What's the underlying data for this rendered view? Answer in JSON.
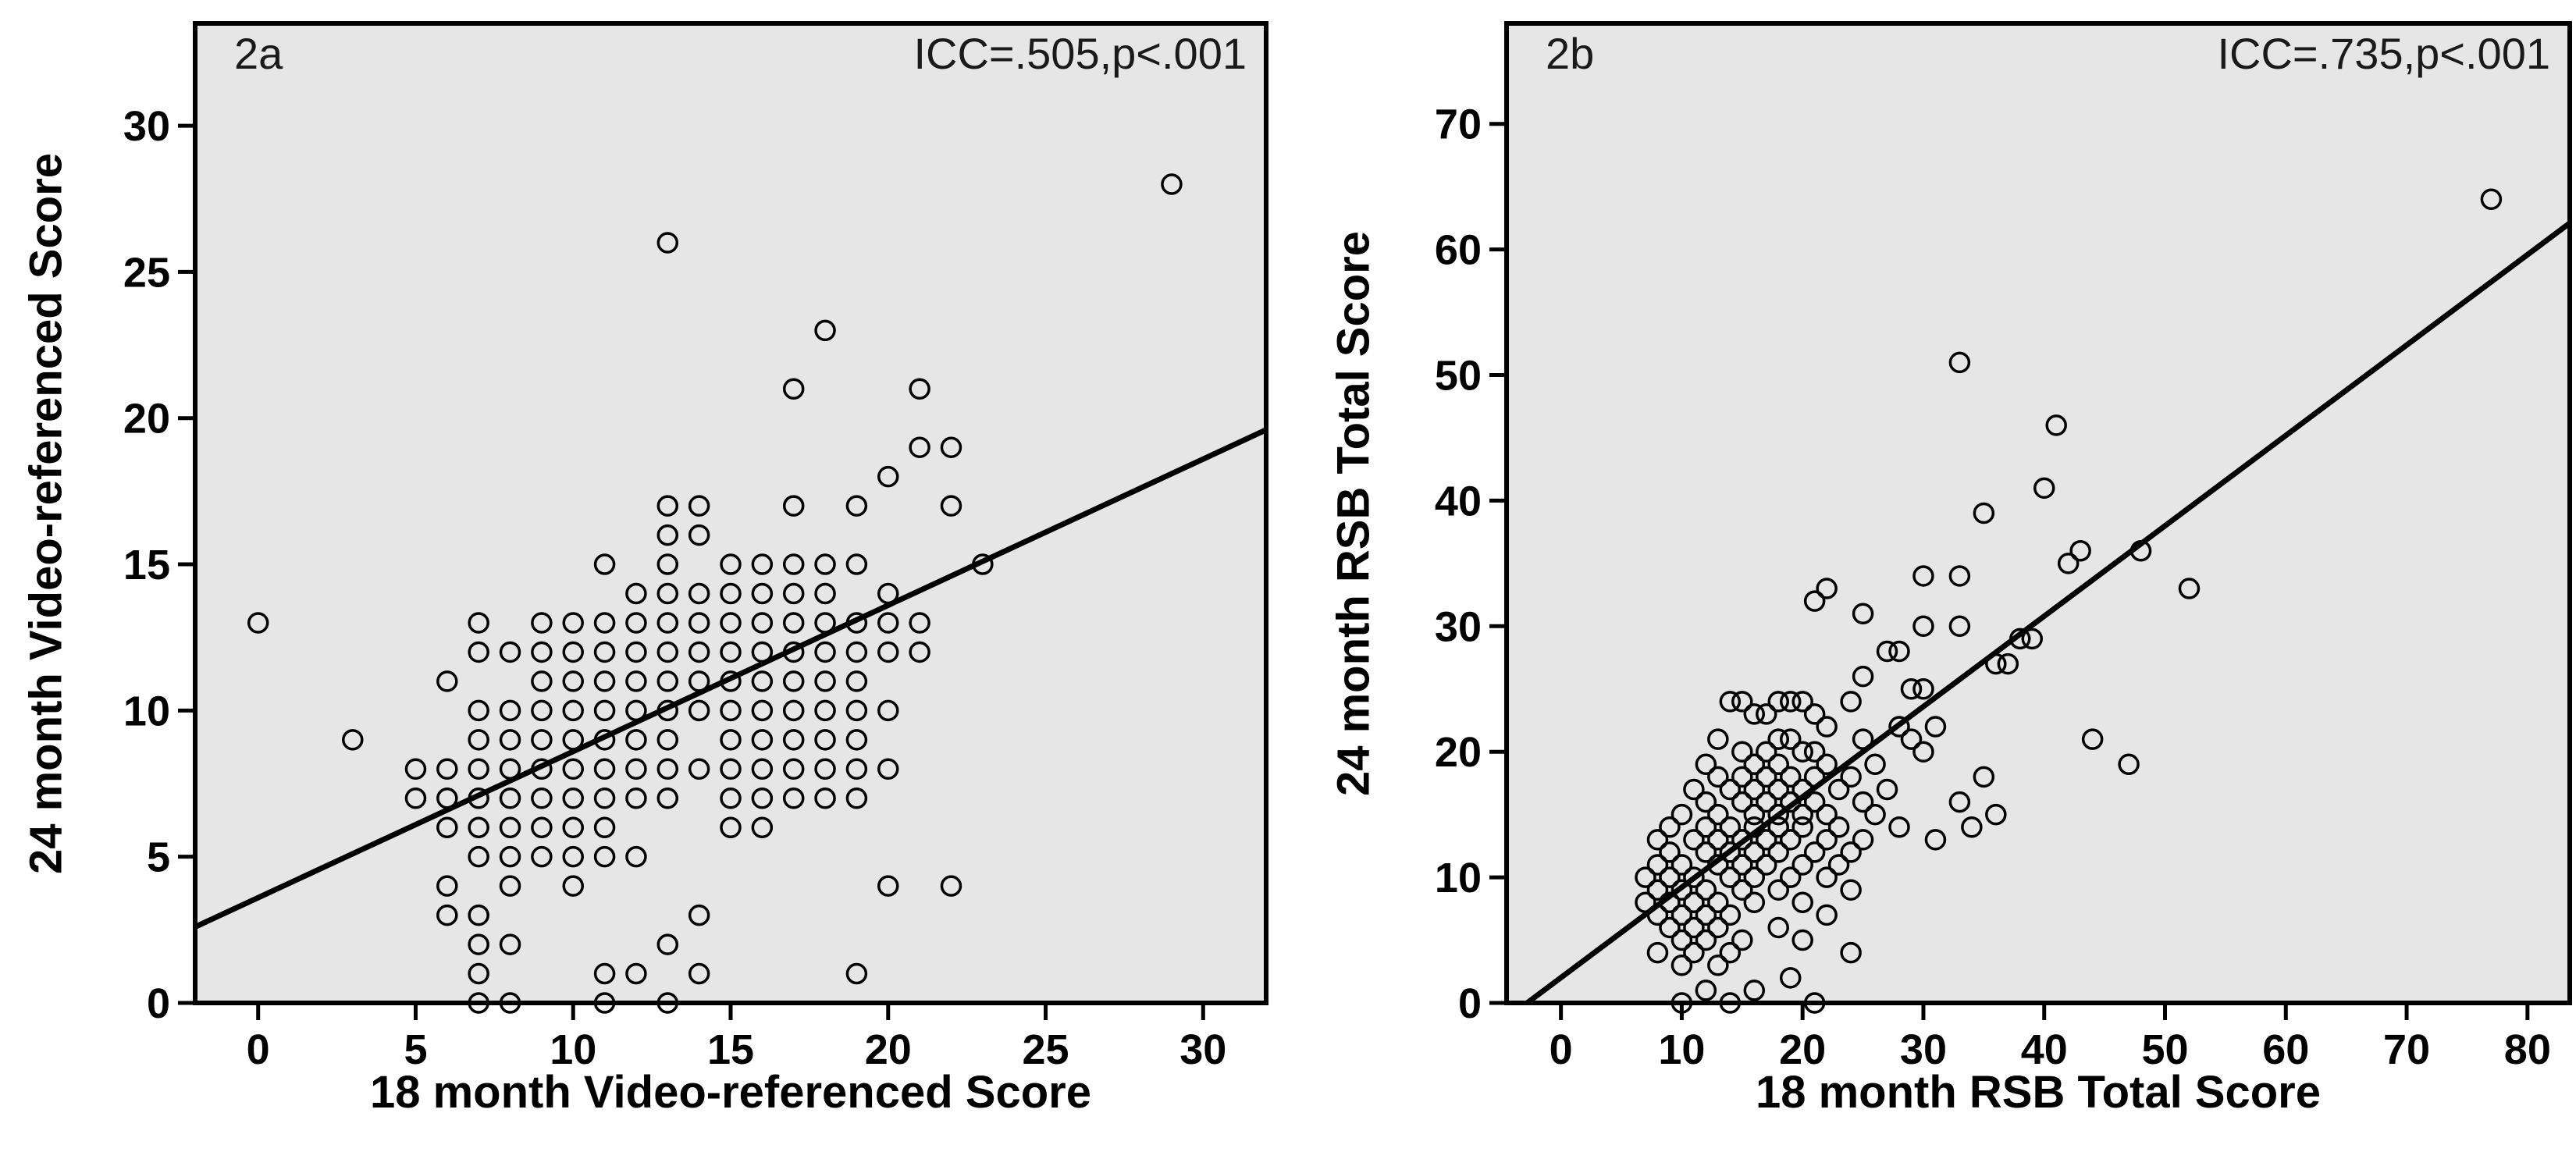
{
  "figure": {
    "background": "#ffffff",
    "plot_background": "#e6e6e6",
    "point_color": "#000000",
    "line_color": "#000000",
    "axis_color": "#000000"
  },
  "chart_data": [
    {
      "id": "2a",
      "type": "scatter",
      "panel_label": "2a",
      "annotation": "ICC=.505,p<.001",
      "xlabel": "18 month Video-referenced Score",
      "ylabel": "24 month Video-referenced Score",
      "xlim": [
        -2,
        32
      ],
      "ylim": [
        0,
        33.5
      ],
      "xticks": [
        0,
        5,
        10,
        15,
        20,
        25,
        30
      ],
      "yticks": [
        0,
        5,
        10,
        15,
        20,
        25,
        30
      ],
      "grid": false,
      "legend": "none",
      "regression_line": {
        "x1": -2,
        "y1": 2.6,
        "x2": 32,
        "y2": 19.6
      },
      "points": [
        [
          0,
          13
        ],
        [
          3,
          9
        ],
        [
          5,
          8
        ],
        [
          5,
          7
        ],
        [
          6,
          11
        ],
        [
          6,
          8
        ],
        [
          6,
          7
        ],
        [
          6,
          6
        ],
        [
          6,
          4
        ],
        [
          6,
          3
        ],
        [
          7,
          13
        ],
        [
          7,
          12
        ],
        [
          7,
          10
        ],
        [
          7,
          9
        ],
        [
          7,
          8
        ],
        [
          7,
          7
        ],
        [
          7,
          6
        ],
        [
          7,
          5
        ],
        [
          7,
          3
        ],
        [
          7,
          2
        ],
        [
          7,
          1
        ],
        [
          7,
          0
        ],
        [
          8,
          12
        ],
        [
          8,
          10
        ],
        [
          8,
          9
        ],
        [
          8,
          8
        ],
        [
          8,
          7
        ],
        [
          8,
          6
        ],
        [
          8,
          5
        ],
        [
          8,
          4
        ],
        [
          8,
          2
        ],
        [
          8,
          0
        ],
        [
          9,
          13
        ],
        [
          9,
          12
        ],
        [
          9,
          11
        ],
        [
          9,
          10
        ],
        [
          9,
          9
        ],
        [
          9,
          8
        ],
        [
          9,
          7
        ],
        [
          9,
          6
        ],
        [
          9,
          5
        ],
        [
          10,
          13
        ],
        [
          10,
          12
        ],
        [
          10,
          11
        ],
        [
          10,
          10
        ],
        [
          10,
          9
        ],
        [
          10,
          8
        ],
        [
          10,
          7
        ],
        [
          10,
          6
        ],
        [
          10,
          5
        ],
        [
          10,
          4
        ],
        [
          11,
          15
        ],
        [
          11,
          13
        ],
        [
          11,
          12
        ],
        [
          11,
          11
        ],
        [
          11,
          10
        ],
        [
          11,
          9
        ],
        [
          11,
          8
        ],
        [
          11,
          7
        ],
        [
          11,
          6
        ],
        [
          11,
          5
        ],
        [
          11,
          1
        ],
        [
          11,
          0
        ],
        [
          12,
          14
        ],
        [
          12,
          13
        ],
        [
          12,
          12
        ],
        [
          12,
          11
        ],
        [
          12,
          10
        ],
        [
          12,
          9
        ],
        [
          12,
          8
        ],
        [
          12,
          7
        ],
        [
          12,
          5
        ],
        [
          12,
          1
        ],
        [
          13,
          26
        ],
        [
          13,
          17
        ],
        [
          13,
          16
        ],
        [
          13,
          15
        ],
        [
          13,
          14
        ],
        [
          13,
          13
        ],
        [
          13,
          12
        ],
        [
          13,
          11
        ],
        [
          13,
          10
        ],
        [
          13,
          9
        ],
        [
          13,
          8
        ],
        [
          13,
          7
        ],
        [
          13,
          2
        ],
        [
          13,
          0
        ],
        [
          14,
          17
        ],
        [
          14,
          16
        ],
        [
          14,
          14
        ],
        [
          14,
          13
        ],
        [
          14,
          12
        ],
        [
          14,
          11
        ],
        [
          14,
          10
        ],
        [
          14,
          8
        ],
        [
          14,
          3
        ],
        [
          14,
          1
        ],
        [
          15,
          15
        ],
        [
          15,
          14
        ],
        [
          15,
          13
        ],
        [
          15,
          12
        ],
        [
          15,
          11
        ],
        [
          15,
          10
        ],
        [
          15,
          9
        ],
        [
          15,
          8
        ],
        [
          15,
          7
        ],
        [
          15,
          6
        ],
        [
          16,
          15
        ],
        [
          16,
          14
        ],
        [
          16,
          13
        ],
        [
          16,
          12
        ],
        [
          16,
          11
        ],
        [
          16,
          10
        ],
        [
          16,
          9
        ],
        [
          16,
          8
        ],
        [
          16,
          7
        ],
        [
          16,
          6
        ],
        [
          17,
          21
        ],
        [
          17,
          17
        ],
        [
          17,
          15
        ],
        [
          17,
          14
        ],
        [
          17,
          13
        ],
        [
          17,
          12
        ],
        [
          17,
          11
        ],
        [
          17,
          10
        ],
        [
          17,
          9
        ],
        [
          17,
          8
        ],
        [
          17,
          7
        ],
        [
          18,
          23
        ],
        [
          18,
          15
        ],
        [
          18,
          14
        ],
        [
          18,
          13
        ],
        [
          18,
          12
        ],
        [
          18,
          11
        ],
        [
          18,
          10
        ],
        [
          18,
          9
        ],
        [
          18,
          8
        ],
        [
          18,
          7
        ],
        [
          19,
          17
        ],
        [
          19,
          15
        ],
        [
          19,
          13
        ],
        [
          19,
          12
        ],
        [
          19,
          11
        ],
        [
          19,
          10
        ],
        [
          19,
          9
        ],
        [
          19,
          8
        ],
        [
          19,
          7
        ],
        [
          19,
          1
        ],
        [
          20,
          18
        ],
        [
          20,
          14
        ],
        [
          20,
          13
        ],
        [
          20,
          12
        ],
        [
          20,
          10
        ],
        [
          20,
          8
        ],
        [
          20,
          4
        ],
        [
          21,
          21
        ],
        [
          21,
          19
        ],
        [
          21,
          13
        ],
        [
          21,
          12
        ],
        [
          22,
          19
        ],
        [
          22,
          17
        ],
        [
          22,
          4
        ],
        [
          23,
          15
        ],
        [
          29,
          28
        ]
      ]
    },
    {
      "id": "2b",
      "type": "scatter",
      "panel_label": "2b",
      "annotation": "ICC=.735,p<.001",
      "xlabel": "18 month RSB Total Score",
      "ylabel": "24 month RSB Total Score",
      "xlim": [
        -4.5,
        83.5
      ],
      "ylim": [
        0,
        78
      ],
      "xticks": [
        0,
        10,
        20,
        30,
        40,
        50,
        60,
        70,
        80
      ],
      "yticks": [
        0,
        10,
        20,
        30,
        40,
        50,
        60,
        70
      ],
      "grid": false,
      "legend": "none",
      "regression_line": {
        "x1": -2.8,
        "y1": 0,
        "x2": 83.5,
        "y2": 62.1
      },
      "points": [
        [
          77,
          64
        ],
        [
          33,
          51
        ],
        [
          41,
          46
        ],
        [
          40,
          41
        ],
        [
          35,
          39
        ],
        [
          43,
          36
        ],
        [
          48,
          36
        ],
        [
          42,
          35
        ],
        [
          30,
          34
        ],
        [
          33,
          34
        ],
        [
          22,
          33
        ],
        [
          52,
          33
        ],
        [
          21,
          32
        ],
        [
          25,
          31
        ],
        [
          30,
          30
        ],
        [
          33,
          30
        ],
        [
          38,
          29
        ],
        [
          39,
          29
        ],
        [
          27,
          28
        ],
        [
          28,
          28
        ],
        [
          36,
          27
        ],
        [
          37,
          27
        ],
        [
          25,
          26
        ],
        [
          29,
          25
        ],
        [
          30,
          25
        ],
        [
          14,
          24
        ],
        [
          15,
          24
        ],
        [
          18,
          24
        ],
        [
          19,
          24
        ],
        [
          20,
          24
        ],
        [
          24,
          24
        ],
        [
          16,
          23
        ],
        [
          17,
          23
        ],
        [
          21,
          23
        ],
        [
          22,
          22
        ],
        [
          28,
          22
        ],
        [
          31,
          22
        ],
        [
          13,
          21
        ],
        [
          18,
          21
        ],
        [
          19,
          21
        ],
        [
          25,
          21
        ],
        [
          29,
          21
        ],
        [
          44,
          21
        ],
        [
          15,
          20
        ],
        [
          17,
          20
        ],
        [
          20,
          20
        ],
        [
          21,
          20
        ],
        [
          30,
          20
        ],
        [
          47,
          19
        ],
        [
          12,
          19
        ],
        [
          16,
          19
        ],
        [
          18,
          19
        ],
        [
          22,
          19
        ],
        [
          26,
          19
        ],
        [
          13,
          18
        ],
        [
          15,
          18
        ],
        [
          17,
          18
        ],
        [
          19,
          18
        ],
        [
          21,
          18
        ],
        [
          24,
          18
        ],
        [
          35,
          18
        ],
        [
          11,
          17
        ],
        [
          14,
          17
        ],
        [
          16,
          17
        ],
        [
          18,
          17
        ],
        [
          20,
          17
        ],
        [
          23,
          17
        ],
        [
          27,
          17
        ],
        [
          12,
          16
        ],
        [
          15,
          16
        ],
        [
          17,
          16
        ],
        [
          19,
          16
        ],
        [
          21,
          16
        ],
        [
          25,
          16
        ],
        [
          33,
          16
        ],
        [
          10,
          15
        ],
        [
          13,
          15
        ],
        [
          16,
          15
        ],
        [
          18,
          15
        ],
        [
          20,
          15
        ],
        [
          22,
          15
        ],
        [
          26,
          15
        ],
        [
          36,
          15
        ],
        [
          9,
          14
        ],
        [
          12,
          14
        ],
        [
          14,
          14
        ],
        [
          16,
          14
        ],
        [
          18,
          14
        ],
        [
          20,
          14
        ],
        [
          23,
          14
        ],
        [
          28,
          14
        ],
        [
          34,
          14
        ],
        [
          8,
          13
        ],
        [
          11,
          13
        ],
        [
          13,
          13
        ],
        [
          15,
          13
        ],
        [
          17,
          13
        ],
        [
          19,
          13
        ],
        [
          22,
          13
        ],
        [
          25,
          13
        ],
        [
          31,
          13
        ],
        [
          9,
          12
        ],
        [
          12,
          12
        ],
        [
          14,
          12
        ],
        [
          16,
          12
        ],
        [
          18,
          12
        ],
        [
          21,
          12
        ],
        [
          24,
          12
        ],
        [
          8,
          11
        ],
        [
          10,
          11
        ],
        [
          13,
          11
        ],
        [
          15,
          11
        ],
        [
          17,
          11
        ],
        [
          20,
          11
        ],
        [
          23,
          11
        ],
        [
          7,
          10
        ],
        [
          9,
          10
        ],
        [
          11,
          10
        ],
        [
          14,
          10
        ],
        [
          16,
          10
        ],
        [
          19,
          10
        ],
        [
          22,
          10
        ],
        [
          8,
          9
        ],
        [
          10,
          9
        ],
        [
          12,
          9
        ],
        [
          15,
          9
        ],
        [
          18,
          9
        ],
        [
          24,
          9
        ],
        [
          7,
          8
        ],
        [
          9,
          8
        ],
        [
          11,
          8
        ],
        [
          13,
          8
        ],
        [
          16,
          8
        ],
        [
          20,
          8
        ],
        [
          8,
          7
        ],
        [
          10,
          7
        ],
        [
          12,
          7
        ],
        [
          14,
          7
        ],
        [
          22,
          7
        ],
        [
          9,
          6
        ],
        [
          11,
          6
        ],
        [
          13,
          6
        ],
        [
          18,
          6
        ],
        [
          10,
          5
        ],
        [
          12,
          5
        ],
        [
          15,
          5
        ],
        [
          20,
          5
        ],
        [
          8,
          4
        ],
        [
          11,
          4
        ],
        [
          14,
          4
        ],
        [
          24,
          4
        ],
        [
          10,
          3
        ],
        [
          13,
          3
        ],
        [
          19,
          2
        ],
        [
          12,
          1
        ],
        [
          16,
          1
        ],
        [
          10,
          0
        ],
        [
          14,
          0
        ],
        [
          21,
          0
        ]
      ]
    }
  ]
}
